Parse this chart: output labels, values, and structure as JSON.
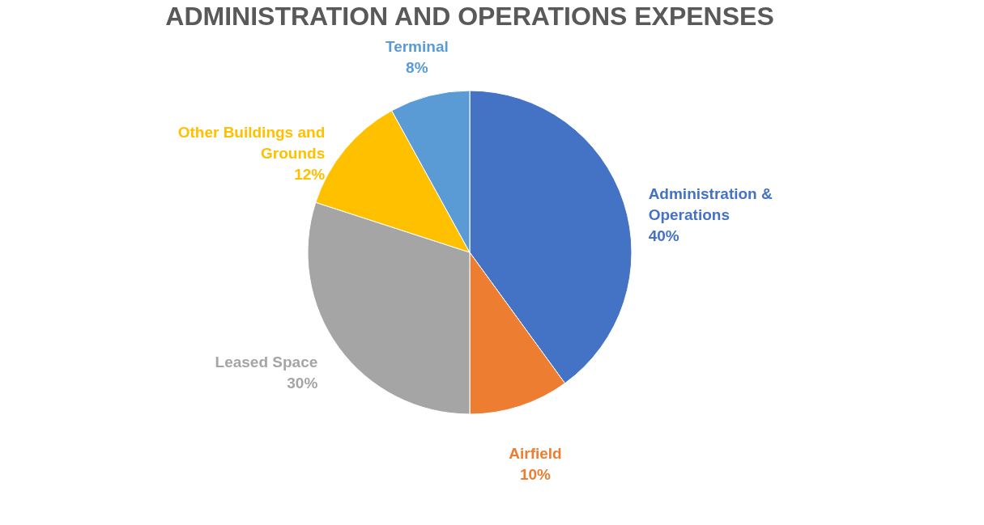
{
  "chart_data": {
    "type": "pie",
    "title": "ADMINISTRATION AND OPERATIONS EXPENSES",
    "categories": [
      "Administration & Operations",
      "Airfield",
      "Leased Space",
      "Other Buildings and Grounds",
      "Terminal"
    ],
    "values": [
      40,
      10,
      30,
      12,
      8
    ],
    "colors": [
      "#4472c4",
      "#ed7d31",
      "#a5a5a5",
      "#ffc000",
      "#5b9bd5"
    ],
    "value_labels": [
      "40%",
      "10%",
      "30%",
      "12%",
      "8%"
    ],
    "legend": false
  }
}
